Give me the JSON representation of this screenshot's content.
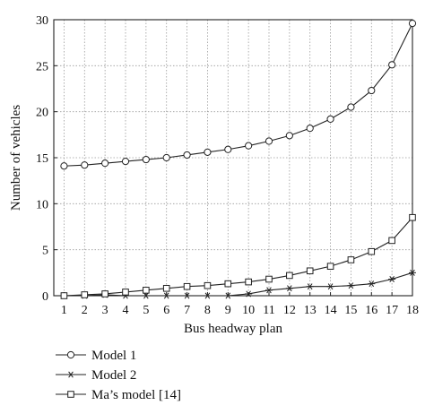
{
  "chart_data": {
    "type": "line",
    "xlabel": "Bus headway plan",
    "ylabel": "Number of vehicles",
    "x": [
      1,
      2,
      3,
      4,
      5,
      6,
      7,
      8,
      9,
      10,
      11,
      12,
      13,
      14,
      15,
      16,
      17,
      18
    ],
    "xlim": [
      0.5,
      18
    ],
    "ylim": [
      0,
      30
    ],
    "yticks": [
      0,
      5,
      10,
      15,
      20,
      25,
      30
    ],
    "grid": true,
    "legend_position": "below-left",
    "series": [
      {
        "name": "Model 1",
        "marker": "circle",
        "values": [
          14.1,
          14.2,
          14.4,
          14.6,
          14.8,
          15.0,
          15.3,
          15.6,
          15.9,
          16.3,
          16.8,
          17.4,
          18.2,
          19.2,
          20.5,
          22.3,
          25.1,
          29.6
        ]
      },
      {
        "name": "Model 2",
        "marker": "asterisk",
        "values": [
          0,
          0,
          0.1,
          0,
          0,
          0,
          0,
          0,
          0,
          0.2,
          0.6,
          0.8,
          1.0,
          1.0,
          1.1,
          1.3,
          1.8,
          2.5
        ]
      },
      {
        "name": "Ma’s model [14]",
        "marker": "square",
        "values": [
          0,
          0.1,
          0.2,
          0.4,
          0.6,
          0.8,
          1.0,
          1.1,
          1.3,
          1.5,
          1.8,
          2.2,
          2.7,
          3.2,
          3.9,
          4.8,
          6.0,
          8.5
        ]
      }
    ],
    "colors": {
      "line": "#222222",
      "grid": "#9a9a9a",
      "axis": "#222222"
    }
  }
}
